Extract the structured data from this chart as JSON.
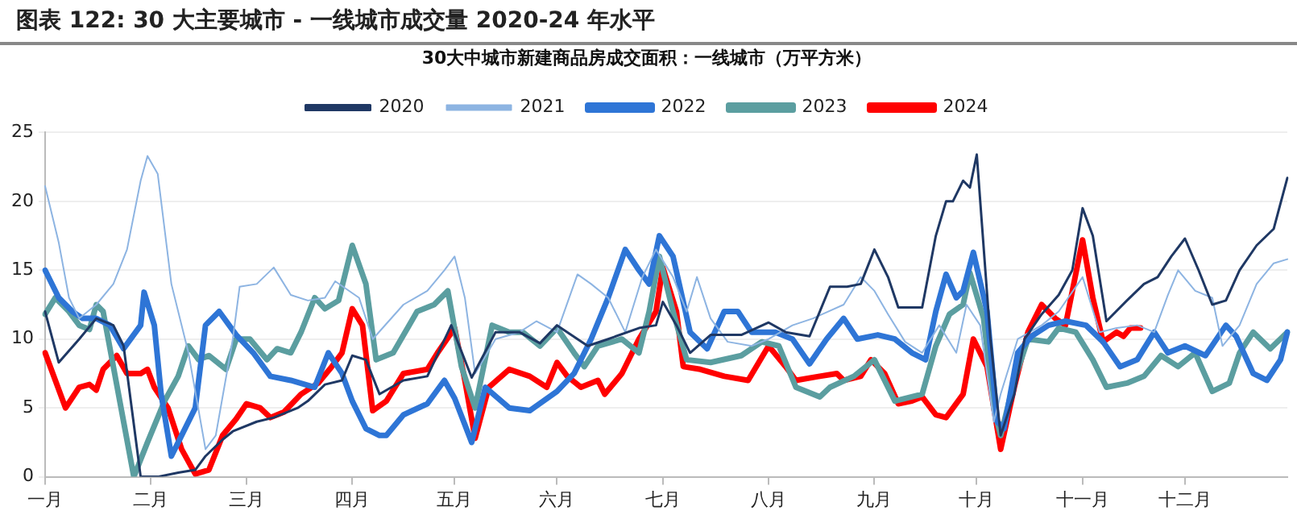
{
  "chart_data": {
    "type": "line",
    "title": "图表 122: 30 大主要城市 - 一线城市成交量 2020-24 年水平",
    "subtitle": "30大中城市新建商品房成交面积：一线城市（万平方米）",
    "categories": [
      "一月",
      null,
      null,
      null,
      null,
      null,
      null,
      null,
      null,
      null,
      null,
      null,
      null,
      null,
      null,
      null,
      null,
      null,
      null,
      null,
      null,
      null,
      null,
      null,
      null,
      null,
      null,
      null,
      null,
      null,
      null,
      "二月",
      null,
      null,
      null,
      null,
      null,
      null,
      null,
      null,
      null,
      null,
      null,
      null,
      null,
      null,
      null,
      null,
      null,
      null,
      null,
      null,
      null,
      null,
      null,
      null,
      null,
      null,
      null,
      "三月",
      null,
      null,
      null,
      null,
      null,
      null,
      null,
      null,
      null,
      null,
      null,
      null,
      null,
      null,
      null,
      null,
      null,
      null,
      null,
      null,
      null,
      null,
      null,
      null,
      null,
      null,
      null,
      null,
      null,
      null,
      "四月",
      null,
      null,
      null,
      null,
      null,
      null,
      null,
      null,
      null,
      null,
      null,
      null,
      null,
      null,
      null,
      null,
      null,
      null,
      null,
      null,
      null,
      null,
      null,
      null,
      null,
      null,
      null,
      null,
      null,
      "五月",
      null,
      null,
      null,
      null,
      null,
      null,
      null,
      null,
      null,
      null,
      null,
      null,
      null,
      null,
      null,
      null,
      null,
      null,
      null,
      null,
      null,
      null,
      null,
      null,
      null,
      null,
      null,
      null,
      null,
      "六月",
      null,
      null,
      null,
      null,
      null,
      null,
      null,
      null,
      null,
      null,
      null,
      null,
      null,
      null,
      null,
      null,
      null,
      null,
      null,
      null,
      null,
      null,
      null,
      null,
      null,
      null,
      null,
      null,
      null,
      null,
      "七月",
      null,
      null,
      null,
      null,
      null,
      null,
      null,
      null,
      null,
      null,
      null,
      null,
      null,
      null,
      null,
      null,
      null,
      null,
      null,
      null,
      null,
      null,
      null,
      null,
      null,
      null,
      null,
      null,
      null,
      null,
      "八月",
      null,
      null,
      null,
      null,
      null,
      null,
      null,
      null,
      null,
      null,
      null,
      null,
      null,
      null,
      null,
      null,
      null,
      null,
      null,
      null,
      null,
      null,
      null,
      null,
      null,
      null,
      null,
      null,
      null,
      null,
      "九月",
      null,
      null,
      null,
      null,
      null,
      null,
      null,
      null,
      null,
      null,
      null,
      null,
      null,
      null,
      null,
      null,
      null,
      null,
      null,
      null,
      null,
      null,
      null,
      null,
      null,
      null,
      null,
      null,
      null,
      "十月",
      null,
      null,
      null,
      null,
      null,
      null,
      null,
      null,
      null,
      null,
      null,
      null,
      null,
      null,
      null,
      null,
      null,
      null,
      null,
      null,
      null,
      null,
      null,
      null,
      null,
      null,
      null,
      null,
      null,
      null,
      "十一月",
      null,
      null,
      null,
      null,
      null,
      null,
      null,
      null,
      null,
      null,
      null,
      null,
      null,
      null,
      null,
      null,
      null,
      null,
      null,
      null,
      null,
      null,
      null,
      null,
      null,
      null,
      null,
      null,
      null,
      "十二月",
      null,
      null,
      null,
      null,
      null,
      null,
      null,
      null,
      null,
      null,
      null,
      null,
      null,
      null,
      null,
      null,
      null,
      null,
      null,
      null,
      null,
      null,
      null,
      null,
      null,
      null,
      null,
      null,
      null,
      null
    ],
    "ylim": [
      0,
      25
    ],
    "yticks": [
      0,
      5,
      10,
      15,
      20,
      25
    ],
    "grid": "y",
    "legend": "top",
    "marker": "none",
    "line_style": "solid",
    "series": [
      {
        "name": "2020",
        "color": "#1f3864",
        "values": [
          12,
          null,
          null,
          null,
          8.3,
          null,
          null,
          null,
          null,
          null,
          10,
          null,
          null,
          null,
          null,
          11.5,
          null,
          null,
          null,
          null,
          11,
          null,
          null,
          9.5,
          null,
          null,
          null,
          null,
          0,
          null,
          null,
          null,
          null,
          0,
          null,
          null,
          null,
          null,
          null,
          0.3,
          null,
          null,
          null,
          null,
          0.5,
          null,
          null,
          1.5,
          null,
          null,
          null,
          null,
          2.7,
          null,
          null,
          3.3,
          null,
          null,
          null,
          null,
          null,
          null,
          4,
          null,
          null,
          null,
          null,
          4.3,
          null,
          null,
          null,
          null,
          null,
          null,
          5,
          null,
          null,
          5.5,
          null,
          null,
          null,
          null,
          6.7,
          null,
          null,
          null,
          null,
          7,
          null,
          null,
          8.8,
          null,
          null,
          null,
          8.5,
          null,
          null,
          null,
          6,
          null,
          null,
          null,
          null,
          null,
          null,
          7,
          null,
          null,
          null,
          null,
          null,
          null,
          7.3,
          null,
          null,
          null,
          null,
          null,
          null,
          11,
          null,
          null,
          null,
          null,
          null,
          7.2,
          null,
          null,
          null,
          null,
          null,
          null,
          10.5,
          null,
          null,
          null,
          null,
          null,
          null,
          10.5,
          null,
          null,
          null,
          null,
          null,
          9.7,
          null,
          null,
          null,
          null,
          11,
          null,
          null,
          null,
          null,
          null,
          null,
          null,
          null,
          9.5,
          null,
          null,
          null,
          null,
          null,
          10,
          null,
          null,
          null,
          null,
          null,
          null,
          null,
          null,
          10.8,
          null,
          null,
          null,
          null,
          11,
          null,
          12.7,
          null,
          null,
          null,
          11,
          null,
          null,
          null,
          9,
          null,
          null,
          null,
          null,
          null,
          10.3,
          null,
          null,
          null,
          null,
          null,
          null,
          null,
          null,
          10.3,
          null,
          null,
          null,
          null,
          null,
          null,
          null,
          11.2,
          null,
          null,
          null,
          null,
          10.5,
          null,
          null,
          null,
          null,
          null,
          null,
          10.2,
          null,
          null,
          null,
          null,
          null,
          13.8,
          null,
          null,
          null,
          null,
          13.8,
          null,
          null,
          null,
          14,
          null,
          null,
          null,
          16.5,
          null,
          null,
          null,
          14.5,
          null,
          null,
          12.3,
          null,
          null,
          null,
          null,
          null,
          null,
          12.3,
          null,
          null,
          null,
          17.5,
          null,
          null,
          20,
          null,
          20,
          null,
          null,
          21.5,
          null,
          21,
          null,
          23.4,
          null,
          null,
          null,
          10,
          null,
          null,
          3,
          null,
          null,
          null,
          6,
          null,
          null,
          10,
          null,
          null,
          null,
          null,
          11.8,
          null,
          null,
          null,
          null,
          13.2,
          null,
          null,
          null,
          15,
          null,
          null,
          19.5,
          null,
          null,
          17.5,
          null,
          null,
          null,
          11.3,
          null,
          null,
          null,
          null,
          null,
          12.8,
          null,
          null,
          null,
          null,
          14,
          null,
          null,
          null,
          14.5,
          null,
          null,
          null,
          16,
          null,
          null,
          null,
          17.3,
          null,
          null,
          null,
          15,
          null,
          null,
          null,
          12.5,
          null,
          null,
          null,
          12.8,
          null,
          null,
          null,
          15,
          null,
          null,
          null,
          null,
          16.8,
          null,
          null,
          null,
          null,
          18,
          null,
          null,
          null,
          21.7
        ]
      },
      {
        "name": "2021",
        "color": "#8db4e2",
        "values": [
          21.1,
          null,
          null,
          null,
          17,
          null,
          null,
          13,
          null,
          null,
          11.5,
          null,
          null,
          null,
          null,
          12.5,
          null,
          null,
          null,
          null,
          14,
          null,
          null,
          null,
          16.5,
          null,
          null,
          null,
          21.5,
          null,
          23.3,
          null,
          null,
          22,
          null,
          null,
          null,
          14,
          null,
          null,
          null,
          null,
          9,
          null,
          null,
          null,
          null,
          2,
          null,
          null,
          3,
          null,
          null,
          null,
          null,
          10,
          null,
          13.8,
          null,
          null,
          null,
          null,
          14,
          null,
          null,
          null,
          null,
          15.2,
          null,
          null,
          null,
          null,
          13.2,
          null,
          null,
          null,
          null,
          12.8,
          null,
          null,
          null,
          null,
          13,
          null,
          null,
          14.2,
          null,
          null,
          null,
          null,
          null,
          null,
          13,
          null,
          null,
          null,
          10,
          null,
          null,
          null,
          null,
          null,
          null,
          null,
          null,
          12.5,
          null,
          null,
          null,
          null,
          null,
          null,
          13.5,
          null,
          null,
          null,
          null,
          15,
          null,
          null,
          16,
          null,
          null,
          13,
          null,
          null,
          7.5,
          null,
          null,
          null,
          null,
          null,
          10,
          null,
          null,
          null,
          null,
          null,
          null,
          10.5,
          null,
          null,
          null,
          null,
          11.3,
          null,
          null,
          null,
          null,
          null,
          10.5,
          null,
          null,
          null,
          null,
          null,
          14.7,
          null,
          null,
          null,
          14,
          null,
          null,
          null,
          null,
          13,
          null,
          null,
          null,
          null,
          10.5,
          null,
          null,
          null,
          null,
          14.5,
          null,
          null,
          null,
          16.5,
          null,
          null,
          null,
          null,
          14.5,
          null,
          null,
          null,
          12,
          null,
          null,
          14.5,
          null,
          null,
          null,
          11.5,
          null,
          null,
          null,
          null,
          9.8,
          null,
          null,
          null,
          null,
          null,
          null,
          9.5,
          null,
          null,
          null,
          null,
          10,
          null,
          null,
          null,
          null,
          null,
          null,
          11,
          null,
          null,
          null,
          null,
          null,
          11.5,
          null,
          null,
          null,
          null,
          null,
          null,
          null,
          null,
          12.5,
          null,
          null,
          null,
          null,
          14.5,
          null,
          null,
          null,
          13.5,
          null,
          null,
          null,
          11.8,
          null,
          null,
          null,
          null,
          9.8,
          null,
          null,
          null,
          null,
          9,
          null,
          null,
          null,
          null,
          11,
          null,
          null,
          null,
          null,
          9,
          null,
          null,
          12.5,
          null,
          null,
          null,
          11,
          null,
          null,
          null,
          4,
          null,
          6,
          null,
          null,
          null,
          null,
          10,
          null,
          null,
          null,
          null,
          null,
          null,
          11,
          null,
          null,
          null,
          null,
          12,
          null,
          null,
          null,
          null,
          null,
          null,
          14.5,
          null,
          null,
          null,
          null,
          10.5,
          null,
          null,
          null,
          null,
          10.8,
          null,
          null,
          null,
          null,
          null,
          11,
          null,
          null,
          null,
          null,
          10.5,
          null,
          null,
          null,
          13.2,
          null,
          null,
          15,
          null,
          null,
          null,
          null,
          13.5,
          null,
          null,
          null,
          null,
          13,
          null,
          null,
          9.5,
          null,
          null,
          null,
          null,
          11,
          null,
          null,
          null,
          null,
          14,
          null,
          null,
          null,
          null,
          15.5,
          null,
          null,
          null,
          15.8
        ]
      },
      {
        "name": "2022",
        "color": "#2e75d6",
        "values": [
          15,
          null,
          null,
          null,
          13,
          null,
          null,
          null,
          12,
          null,
          null,
          11.5,
          null,
          null,
          null,
          11.5,
          null,
          null,
          null,
          11,
          null,
          null,
          null,
          9.3,
          null,
          null,
          null,
          null,
          11,
          13.4,
          null,
          null,
          11,
          null,
          6,
          null,
          null,
          1.5,
          null,
          2.5,
          null,
          null,
          null,
          null,
          5,
          null,
          null,
          11,
          null,
          null,
          null,
          12,
          null,
          null,
          null,
          null,
          10.3,
          null,
          null,
          null,
          null,
          9,
          null,
          null,
          null,
          null,
          7.3,
          null,
          null,
          null,
          null,
          null,
          7,
          null,
          null,
          null,
          null,
          null,
          null,
          6.5,
          null,
          null,
          null,
          9,
          null,
          null,
          null,
          7.5,
          null,
          null,
          5.5,
          null,
          null,
          null,
          3.5,
          null,
          null,
          null,
          3,
          null,
          3,
          null,
          null,
          null,
          null,
          4.5,
          null,
          null,
          null,
          null,
          null,
          null,
          5.3,
          null,
          null,
          null,
          null,
          7,
          null,
          null,
          5.7,
          null,
          null,
          null,
          null,
          2.5,
          null,
          null,
          null,
          6.5,
          null,
          null,
          null,
          null,
          null,
          null,
          5,
          null,
          null,
          null,
          null,
          null,
          4.8,
          null,
          null,
          null,
          null,
          null,
          null,
          null,
          6.2,
          null,
          null,
          null,
          null,
          7.5,
          null,
          null,
          null,
          null,
          10,
          null,
          null,
          null,
          null,
          13,
          null,
          null,
          null,
          null,
          16.5,
          null,
          null,
          null,
          15,
          null,
          null,
          14,
          null,
          null,
          17.5,
          null,
          null,
          null,
          16,
          null,
          null,
          null,
          null,
          10.5,
          null,
          null,
          null,
          null,
          9.3,
          null,
          null,
          null,
          null,
          12,
          null,
          null,
          null,
          12,
          null,
          null,
          null,
          10.5,
          null,
          null,
          null,
          null,
          null,
          null,
          10.5,
          null,
          null,
          null,
          null,
          10,
          null,
          null,
          null,
          null,
          8.2,
          null,
          null,
          null,
          null,
          10,
          null,
          null,
          null,
          null,
          11.5,
          null,
          null,
          null,
          10,
          null,
          null,
          null,
          null,
          null,
          10.3,
          null,
          null,
          null,
          null,
          10,
          null,
          null,
          null,
          null,
          9,
          null,
          null,
          null,
          8.5,
          null,
          null,
          12,
          null,
          null,
          14.7,
          null,
          null,
          13,
          null,
          13.5,
          null,
          null,
          16.3,
          null,
          null,
          null,
          12,
          null,
          null,
          4,
          null,
          3.5,
          null,
          null,
          null,
          9,
          null,
          null,
          null,
          10.2,
          null,
          null,
          null,
          null,
          11,
          null,
          null,
          null,
          null,
          11.3,
          null,
          null,
          null,
          null,
          null,
          11,
          null,
          null,
          null,
          null,
          9.8,
          null,
          null,
          null,
          null,
          8,
          null,
          null,
          null,
          null,
          8.5,
          null,
          null,
          null,
          null,
          10.5,
          null,
          null,
          null,
          9,
          null,
          null,
          null,
          null,
          9.5,
          null,
          null,
          null,
          null,
          null,
          8.8,
          null,
          null,
          null,
          null,
          null,
          11,
          null,
          null,
          10.2,
          null,
          null,
          null,
          null,
          7.5,
          null,
          null,
          null,
          7,
          null,
          null,
          null,
          8.5,
          null,
          10.5
        ]
      },
      {
        "name": "2023",
        "color": "#5b9ea0",
        "values": [
          11.8,
          null,
          null,
          13,
          null,
          null,
          null,
          12,
          null,
          null,
          11,
          null,
          null,
          10.7,
          null,
          12.5,
          null,
          12,
          null,
          null,
          8,
          null,
          null,
          4,
          null,
          null,
          0,
          null,
          null,
          null,
          2.5,
          null,
          null,
          null,
          null,
          5.5,
          null,
          null,
          null,
          7.3,
          null,
          null,
          9.5,
          null,
          null,
          8.5,
          null,
          null,
          8.8,
          null,
          null,
          null,
          null,
          7.8,
          null,
          null,
          10,
          null,
          null,
          null,
          10,
          null,
          null,
          null,
          null,
          8.5,
          null,
          null,
          9.3,
          null,
          null,
          null,
          9,
          null,
          null,
          10.5,
          null,
          null,
          null,
          13,
          null,
          null,
          12.2,
          null,
          null,
          null,
          12.8,
          null,
          null,
          null,
          16.8,
          null,
          null,
          null,
          14,
          null,
          null,
          8.5,
          null,
          null,
          null,
          null,
          9,
          null,
          null,
          null,
          null,
          null,
          null,
          12,
          null,
          null,
          null,
          null,
          12.5,
          null,
          null,
          null,
          13.5,
          null,
          null,
          null,
          8,
          null,
          null,
          null,
          5,
          null,
          null,
          null,
          null,
          11,
          null,
          null,
          null,
          null,
          10.5,
          null,
          null,
          null,
          10.5,
          null,
          null,
          null,
          null,
          9.5,
          null,
          null,
          null,
          null,
          10.8,
          null,
          null,
          null,
          null,
          9,
          null,
          null,
          8,
          null,
          null,
          null,
          9.5,
          null,
          null,
          null,
          null,
          null,
          null,
          10,
          null,
          null,
          null,
          null,
          9,
          null,
          null,
          12,
          null,
          null,
          16,
          null,
          null,
          null,
          12,
          null,
          null,
          null,
          8.5,
          null,
          null,
          null,
          null,
          null,
          null,
          8.3,
          null,
          null,
          null,
          null,
          null,
          null,
          null,
          null,
          8.8,
          null,
          null,
          null,
          null,
          null,
          9.8,
          null,
          null,
          null,
          null,
          9.5,
          null,
          null,
          null,
          null,
          6.5,
          null,
          null,
          null,
          null,
          null,
          null,
          5.8,
          null,
          null,
          6.5,
          null,
          null,
          null,
          null,
          null,
          null,
          7.3,
          null,
          null,
          null,
          null,
          null,
          8.5,
          null,
          null,
          null,
          null,
          null,
          5.5,
          null,
          null,
          null,
          null,
          null,
          null,
          null,
          6,
          null,
          null,
          null,
          9.5,
          null,
          null,
          null,
          11.8,
          null,
          null,
          null,
          12.5,
          null,
          14.8,
          null,
          null,
          null,
          11.5,
          null,
          null,
          5,
          null,
          3,
          null,
          null,
          null,
          7,
          null,
          null,
          null,
          10,
          null,
          null,
          null,
          null,
          null,
          9.8,
          null,
          null,
          10.8,
          null,
          null,
          null,
          null,
          10.5,
          null,
          null,
          null,
          null,
          8.5,
          null,
          null,
          null,
          6.5,
          null,
          null,
          null,
          null,
          null,
          6.8,
          null,
          null,
          null,
          null,
          7.3,
          null,
          null,
          null,
          null,
          8.8,
          null,
          null,
          null,
          null,
          8,
          null,
          null,
          null,
          null,
          9,
          null,
          null,
          null,
          null,
          6.2,
          null,
          null,
          null,
          null,
          6.8,
          null,
          null,
          9,
          null,
          null,
          null,
          10.5,
          null,
          null,
          null,
          null,
          9.3,
          null,
          null,
          null,
          null,
          10.5
        ]
      },
      {
        "name": "2024",
        "color": "#ff0000",
        "values": [
          9,
          null,
          null,
          7,
          null,
          null,
          5,
          null,
          null,
          null,
          6.5,
          null,
          null,
          6.7,
          null,
          6.3,
          null,
          7.8,
          null,
          null,
          null,
          8.8,
          null,
          null,
          7.5,
          null,
          null,
          null,
          7.5,
          null,
          7.8,
          null,
          6.5,
          null,
          null,
          null,
          5,
          null,
          null,
          null,
          2,
          null,
          null,
          null,
          0.2,
          null,
          null,
          null,
          0.5,
          null,
          null,
          null,
          3,
          null,
          null,
          null,
          4.2,
          null,
          null,
          5.3,
          null,
          null,
          null,
          5,
          null,
          null,
          4.3,
          null,
          null,
          null,
          4.7,
          null,
          null,
          null,
          null,
          6,
          null,
          null,
          null,
          null,
          6.8,
          null,
          null,
          null,
          8,
          null,
          null,
          9,
          null,
          null,
          12.2,
          null,
          null,
          11,
          null,
          null,
          4.8,
          null,
          null,
          null,
          5.5,
          null,
          null,
          null,
          null,
          7.5,
          null,
          null,
          null,
          null,
          null,
          null,
          7.8,
          null,
          null,
          9,
          null,
          null,
          null,
          null,
          10.8,
          null,
          null,
          7,
          null,
          null,
          2.8,
          null,
          null,
          null,
          6.5,
          null,
          null,
          null,
          null,
          null,
          7.8,
          null,
          null,
          null,
          null,
          null,
          7.3,
          null,
          null,
          null,
          null,
          6.5,
          null,
          null,
          8.3,
          null,
          null,
          7.3,
          null,
          null,
          null,
          6.5,
          null,
          null,
          null,
          null,
          7,
          null,
          6,
          null,
          null,
          null,
          null,
          7.5,
          null,
          null,
          null,
          null,
          10,
          null,
          null,
          null,
          null,
          12,
          null,
          15.2,
          null,
          null,
          null,
          12,
          null,
          8,
          null,
          null,
          null,
          null,
          7.8,
          null,
          null,
          null,
          null,
          null,
          null,
          7.3,
          null,
          null,
          null,
          null,
          null,
          null,
          7,
          null,
          null,
          null,
          null,
          null,
          9.5,
          null,
          null,
          null,
          null,
          8,
          null,
          null,
          7,
          null,
          null,
          null,
          null,
          null,
          null,
          7.3,
          null,
          null,
          null,
          null,
          7.5,
          null,
          7,
          null,
          null,
          null,
          null,
          7.3,
          null,
          null,
          8.5,
          null,
          null,
          null,
          7.5,
          null,
          null,
          null,
          5.3,
          null,
          null,
          null,
          5.5,
          null,
          null,
          5.8,
          null,
          null,
          null,
          4.5,
          null,
          null,
          4.3,
          null,
          null,
          null,
          null,
          6,
          null,
          null,
          10,
          null,
          null,
          null,
          8,
          null,
          null,
          null,
          2,
          null,
          null,
          null,
          6.5,
          null,
          null,
          null,
          10.5,
          null,
          null,
          null,
          12.5,
          null,
          null,
          null,
          11.5,
          null,
          null,
          11,
          null,
          null,
          null,
          null,
          17.2,
          null,
          null,
          13,
          null,
          null,
          9.8,
          null,
          null,
          null,
          10.5,
          null,
          10.2,
          null,
          10.8,
          null,
          null,
          10.8,
          null,
          null,
          null,
          null,
          null,
          null,
          null,
          null,
          null,
          null,
          null,
          null,
          null,
          null,
          null,
          null,
          null,
          null,
          null,
          null,
          null,
          null,
          null,
          null,
          null,
          null,
          null,
          null,
          null,
          null,
          null,
          null,
          null,
          null,
          null,
          null,
          null,
          null,
          null,
          null,
          null,
          null,
          null
        ]
      }
    ]
  }
}
